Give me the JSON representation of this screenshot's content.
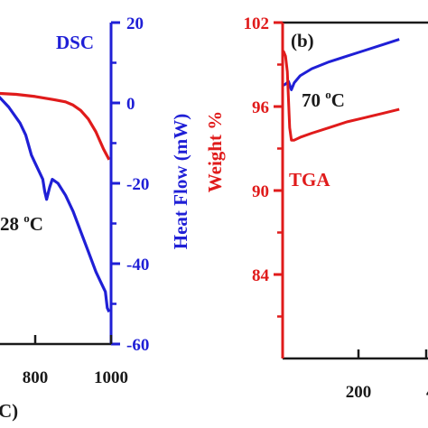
{
  "colors": {
    "dsc": "#1f1fd6",
    "tga": "#e01b1b",
    "axis_dark": "#1a1a1a",
    "background": "#ffffff"
  },
  "chart_data": [
    {
      "type": "line",
      "panel": "a",
      "title": "",
      "xlabel": "C)",
      "ylabel_right": "Heat Flow (mW)",
      "x_ticks": [
        "800",
        "1000"
      ],
      "xlim": [
        650,
        1000
      ],
      "y_right_ticks": [
        "20",
        "0",
        "-20",
        "-40",
        "-60"
      ],
      "y_right_lim": [
        -60,
        20
      ],
      "y_left_lim": [
        74,
        104
      ],
      "grid": false,
      "legend": "none",
      "annotations": [
        {
          "text": "DSC",
          "color": "#1f1fd6"
        },
        {
          "text": "28 ",
          "sup": "o",
          "tail": "C",
          "color": "#1a1a1a"
        }
      ],
      "series": [
        {
          "axis": "right",
          "color": "#1f1fd6",
          "x": [
            650,
            700,
            730,
            760,
            775,
            790,
            800,
            810,
            820,
            825,
            830,
            838,
            845,
            860,
            880,
            900,
            920,
            940,
            960,
            975,
            985,
            990,
            995
          ],
          "y": [
            4,
            2,
            -1,
            -5,
            -8,
            -13,
            -15,
            -17,
            -19,
            -22,
            -24,
            -21,
            -19,
            -20,
            -23,
            -27,
            -32,
            -37,
            -42,
            -45,
            -47,
            -51,
            -52
          ]
        },
        {
          "axis": "left",
          "color": "#e01b1b",
          "x": [
            650,
            700,
            750,
            800,
            850,
            880,
            900,
            920,
            940,
            960,
            980,
            995
          ],
          "y": [
            97.5,
            97.4,
            97.3,
            97.1,
            96.8,
            96.6,
            96.3,
            95.8,
            95.0,
            93.8,
            92.2,
            91.2
          ]
        }
      ]
    },
    {
      "type": "line",
      "panel": "b",
      "panel_label": "(b)",
      "title": "",
      "ylabel": "Weight %",
      "x_ticks": [
        "200",
        "4"
      ],
      "xlim": [
        70,
        270
      ],
      "y_ticks": [
        "102",
        "96",
        "90",
        "84"
      ],
      "ylim": [
        78,
        102
      ],
      "grid": false,
      "legend": "none",
      "annotations": [
        {
          "text": "70 ",
          "sup": "o",
          "tail": "C",
          "color": "#1a1a1a"
        },
        {
          "text": "TGA",
          "color": "#e01b1b"
        }
      ],
      "series": [
        {
          "axis": "left",
          "color": "#e01b1b",
          "x": [
            70,
            72,
            75,
            78,
            80,
            82,
            85,
            90,
            100,
            120,
            150,
            180,
            210,
            240,
            270
          ],
          "y": [
            100.0,
            99.9,
            99.6,
            98.5,
            96.5,
            94.5,
            93.6,
            93.6,
            93.8,
            94.1,
            94.5,
            94.9,
            95.2,
            95.5,
            95.8
          ]
        },
        {
          "axis": "left",
          "color": "#1f1fd6",
          "x": [
            70,
            75,
            80,
            85,
            90,
            100,
            120,
            150,
            180,
            210,
            240,
            270
          ],
          "y": [
            97.5,
            97.6,
            97.8,
            97.2,
            97.7,
            98.2,
            98.7,
            99.2,
            99.6,
            100.0,
            100.4,
            100.8
          ]
        }
      ]
    }
  ]
}
